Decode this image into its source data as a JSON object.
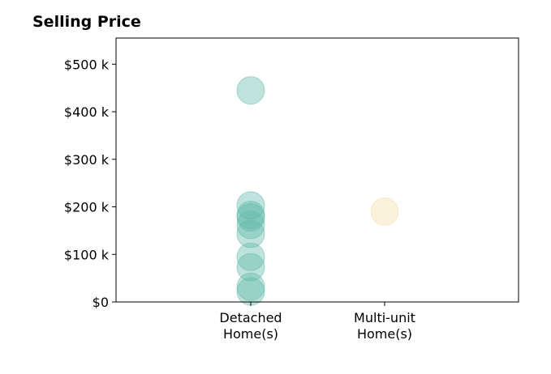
{
  "chart_data": {
    "type": "scatter",
    "title": "Selling Price",
    "xlabel": "",
    "ylabel": "",
    "categories": [
      [
        "Detached",
        "Home(s)"
      ],
      [
        "Multi-unit",
        "Home(s)"
      ]
    ],
    "y_ticks": [
      0,
      100000,
      200000,
      300000,
      400000,
      500000
    ],
    "y_tick_labels": [
      "$0",
      "$100 k",
      "$200 k",
      "$300 k",
      "$400 k",
      "$500 k"
    ],
    "ylim": [
      0,
      555000
    ],
    "grid": false,
    "series": [
      {
        "category_index": 0,
        "color": "#5fb8a8",
        "values": [
          445000,
          203000,
          183000,
          178000,
          162000,
          143000,
          95000,
          73000,
          32000,
          22000
        ]
      },
      {
        "category_index": 1,
        "color": "#f3dca6",
        "values": [
          190000
        ]
      }
    ]
  }
}
